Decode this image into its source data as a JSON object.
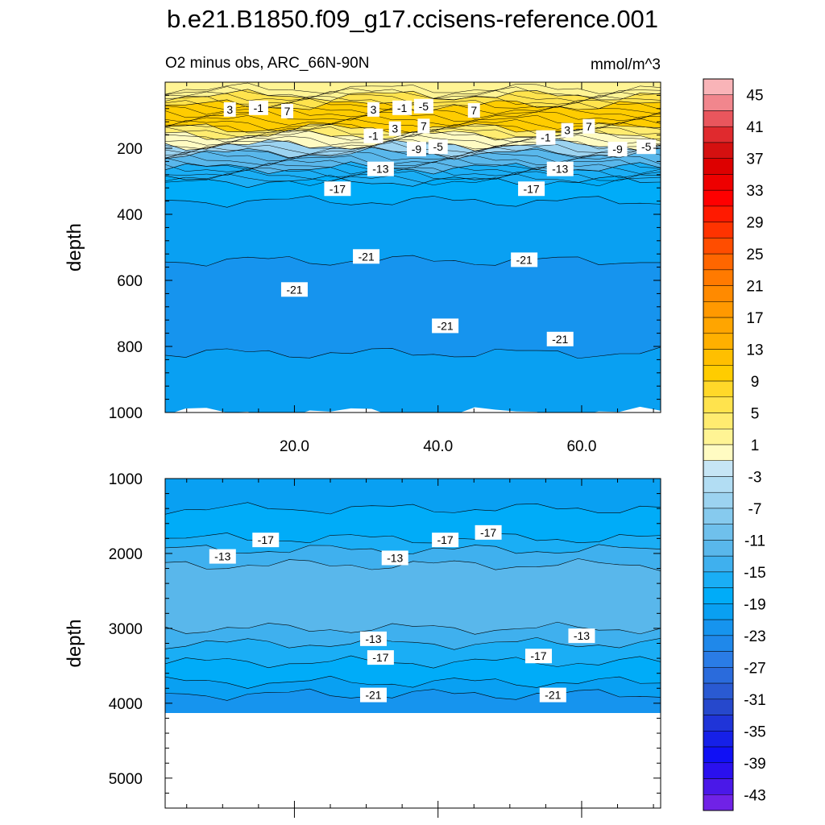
{
  "figure": {
    "title": "b.e21.B1850.f09_g17.ccisens-reference.001",
    "subtitle_left": "O2 minus obs, ARC_66N-90N",
    "subtitle_right": "mmol/m^3"
  },
  "chart_data": [
    {
      "type": "heatmap",
      "panel": "upper",
      "ylabel": "depth",
      "xlim": [
        2,
        71
      ],
      "ylim": [
        0,
        1000
      ],
      "y_inverted": true,
      "xticks": [
        20,
        40,
        60
      ],
      "xtick_labels": [
        "20.0",
        "40.0",
        "60.0"
      ],
      "yticks": [
        200,
        400,
        600,
        800,
        1000
      ],
      "ytick_labels": [
        "200",
        "400",
        "600",
        "800",
        "1000"
      ],
      "layers": [
        {
          "top": 0,
          "bottom": 40,
          "value": 3
        },
        {
          "top": 40,
          "bottom": 70,
          "value": 6
        },
        {
          "top": 70,
          "bottom": 140,
          "value": 10
        },
        {
          "top": 140,
          "bottom": 160,
          "value": 5
        },
        {
          "top": 160,
          "bottom": 190,
          "value": 1
        },
        {
          "top": 190,
          "bottom": 215,
          "value": -5
        },
        {
          "top": 215,
          "bottom": 260,
          "value": -11
        },
        {
          "top": 260,
          "bottom": 300,
          "value": -15
        },
        {
          "top": 300,
          "bottom": 360,
          "value": -17
        },
        {
          "top": 360,
          "bottom": 540,
          "value": -19
        },
        {
          "top": 540,
          "bottom": 820,
          "value": -22
        },
        {
          "top": 820,
          "bottom": 1000,
          "value": -20
        }
      ],
      "contour_labels": [
        {
          "text": "3",
          "x": 11,
          "y": 85
        },
        {
          "text": "-1",
          "x": 15,
          "y": 80
        },
        {
          "text": "7",
          "x": 19,
          "y": 90
        },
        {
          "text": "3",
          "x": 31,
          "y": 85
        },
        {
          "text": "-1",
          "x": 35,
          "y": 80
        },
        {
          "text": "-5",
          "x": 38,
          "y": 75
        },
        {
          "text": "7",
          "x": 45,
          "y": 88
        },
        {
          "text": "3",
          "x": 34,
          "y": 143
        },
        {
          "text": "7",
          "x": 38,
          "y": 135
        },
        {
          "text": "-1",
          "x": 31,
          "y": 165
        },
        {
          "text": "3",
          "x": 58,
          "y": 148
        },
        {
          "text": "7",
          "x": 61,
          "y": 136
        },
        {
          "text": "-1",
          "x": 55,
          "y": 170
        },
        {
          "text": "-9",
          "x": 37,
          "y": 205
        },
        {
          "text": "-5",
          "x": 40,
          "y": 198
        },
        {
          "text": "-9",
          "x": 65,
          "y": 205
        },
        {
          "text": "-5",
          "x": 69,
          "y": 198
        },
        {
          "text": "-13",
          "x": 32,
          "y": 265
        },
        {
          "text": "-13",
          "x": 57,
          "y": 265
        },
        {
          "text": "-17",
          "x": 26,
          "y": 325
        },
        {
          "text": "-17",
          "x": 53,
          "y": 325
        },
        {
          "text": "-21",
          "x": 30,
          "y": 530
        },
        {
          "text": "-21",
          "x": 52,
          "y": 540
        },
        {
          "text": "-21",
          "x": 20,
          "y": 630
        },
        {
          "text": "-21",
          "x": 41,
          "y": 740
        },
        {
          "text": "-21",
          "x": 57,
          "y": 780
        }
      ]
    },
    {
      "type": "heatmap",
      "panel": "lower",
      "ylabel": "depth",
      "xlim": [
        2,
        71
      ],
      "ylim": [
        1000,
        5400
      ],
      "y_inverted": true,
      "yticks": [
        1000,
        2000,
        3000,
        4000,
        5000
      ],
      "ytick_labels": [
        "1000",
        "2000",
        "3000",
        "4000",
        "5000"
      ],
      "data_max_depth": 4130,
      "layers": [
        {
          "top": 1000,
          "bottom": 1400,
          "value": -19
        },
        {
          "top": 1400,
          "bottom": 1800,
          "value": -17
        },
        {
          "top": 1800,
          "bottom": 1950,
          "value": -15
        },
        {
          "top": 1950,
          "bottom": 2150,
          "value": -13
        },
        {
          "top": 2150,
          "bottom": 3000,
          "value": -11
        },
        {
          "top": 3000,
          "bottom": 3200,
          "value": -13
        },
        {
          "top": 3200,
          "bottom": 3450,
          "value": -15
        },
        {
          "top": 3450,
          "bottom": 3720,
          "value": -17
        },
        {
          "top": 3720,
          "bottom": 3880,
          "value": -19
        },
        {
          "top": 3880,
          "bottom": 4130,
          "value": -22
        }
      ],
      "contour_labels": [
        {
          "text": "-17",
          "x": 16,
          "y": 1830
        },
        {
          "text": "-17",
          "x": 41,
          "y": 1830
        },
        {
          "text": "-17",
          "x": 47,
          "y": 1730
        },
        {
          "text": "-13",
          "x": 10,
          "y": 2050
        },
        {
          "text": "-13",
          "x": 34,
          "y": 2070
        },
        {
          "text": "-13",
          "x": 31,
          "y": 3150
        },
        {
          "text": "-13",
          "x": 60,
          "y": 3110
        },
        {
          "text": "-17",
          "x": 32,
          "y": 3400
        },
        {
          "text": "-17",
          "x": 54,
          "y": 3380
        },
        {
          "text": "-21",
          "x": 31,
          "y": 3900
        },
        {
          "text": "-21",
          "x": 56,
          "y": 3900
        }
      ]
    }
  ],
  "colorbar": {
    "labels": [
      "45",
      "41",
      "37",
      "33",
      "29",
      "25",
      "21",
      "17",
      "13",
      "9",
      "5",
      "1",
      "-3",
      "-7",
      "-11",
      "-15",
      "-19",
      "-23",
      "-27",
      "-31",
      "-35",
      "-39",
      "-43"
    ],
    "bounds": [
      47,
      45,
      43,
      41,
      39,
      37,
      35,
      33,
      31,
      29,
      27,
      25,
      23,
      21,
      19,
      17,
      15,
      13,
      11,
      9,
      7,
      5,
      3,
      1,
      -1,
      -3,
      -5,
      -7,
      -9,
      -11,
      -13,
      -15,
      -17,
      -19,
      -21,
      -23,
      -25,
      -27,
      -29,
      -31,
      -33,
      -35,
      -37,
      -39,
      -41,
      -43,
      -45
    ],
    "colors": [
      "#f9b4b8",
      "#f1868d",
      "#e9565d",
      "#e02a2e",
      "#d51010",
      "#dd0000",
      "#ee0000",
      "#ff0000",
      "#ff1a00",
      "#ff3300",
      "#ff4d00",
      "#ff6600",
      "#ff7a00",
      "#ff8a00",
      "#ff9900",
      "#ffa500",
      "#ffb000",
      "#ffbf00",
      "#ffcc00",
      "#ffd829",
      "#ffe34d",
      "#ffec70",
      "#fff494",
      "#fffbc2",
      "#c6e5f5",
      "#b2ddf3",
      "#9cd3f0",
      "#86caee",
      "#6fc0ec",
      "#59b7eb",
      "#3fb0ee",
      "#1aaef5",
      "#00acf8",
      "#09a0f2",
      "#1694ee",
      "#1f88ea",
      "#2a7ce6",
      "#2a6bdc",
      "#2a5ad2",
      "#2648cc",
      "#1f34d8",
      "#1620e8",
      "#1010f5",
      "#2a10ee",
      "#4a18e8",
      "#7022e6"
    ]
  }
}
